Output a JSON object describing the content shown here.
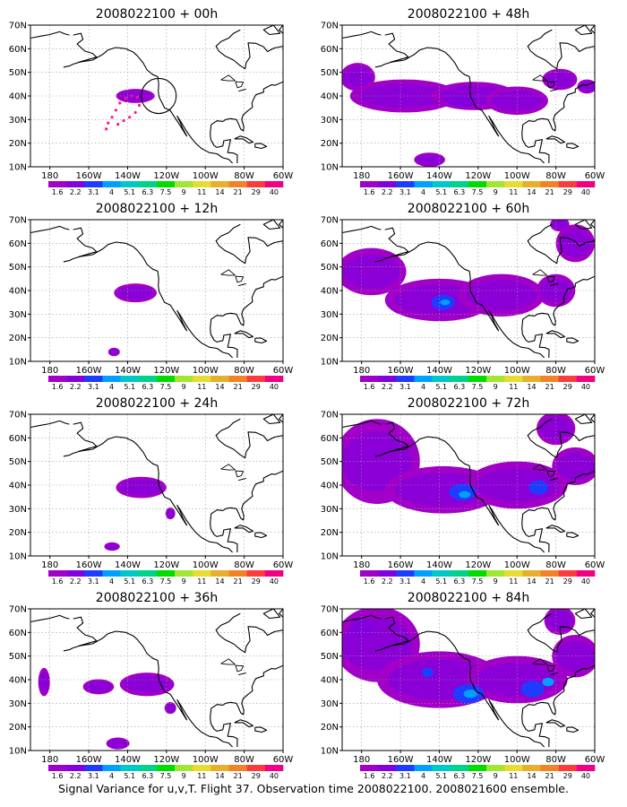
{
  "caption": "Signal Variance for u,v,T. Flight 37. Observation time 2008022100. 2008021600 ensemble.",
  "axes": {
    "x_ticks": [
      "180",
      "160W",
      "140W",
      "120W",
      "100W",
      "80W",
      "60W"
    ],
    "y_ticks": [
      "10N",
      "20N",
      "30N",
      "40N",
      "50N",
      "60N",
      "70N"
    ],
    "x_range_lon": [
      -190,
      -60
    ],
    "y_range_lat": [
      10,
      70
    ],
    "grid": true
  },
  "colorbar": {
    "levels": [
      "1.6",
      "2.2",
      "3.1",
      "4",
      "5.1",
      "6.3",
      "7.5",
      "9",
      "11",
      "14",
      "21",
      "29",
      "40"
    ],
    "colors": [
      "#a000c8",
      "#8200dc",
      "#1e3cff",
      "#00a0ff",
      "#00c8c8",
      "#00d28c",
      "#00dc00",
      "#a0e632",
      "#e6dc32",
      "#e6af2d",
      "#f08228",
      "#fa3c3c",
      "#f00082"
    ]
  },
  "chart_data": [
    {
      "type": "heatmap",
      "title": "2008022100 + 00h",
      "blobs": [
        {
          "lon": -136,
          "lat": 40,
          "rx": 10,
          "ry": 3,
          "level": 0
        }
      ],
      "flight_track": [
        [
          -151,
          26
        ],
        [
          -150,
          28.5
        ],
        [
          -148,
          31
        ],
        [
          -146,
          34
        ],
        [
          -144,
          37
        ],
        [
          -141,
          39
        ],
        [
          -138,
          40
        ],
        [
          -135,
          39.5
        ],
        [
          -134,
          36
        ],
        [
          -136,
          33
        ],
        [
          -139,
          31
        ],
        [
          -142,
          29.5
        ],
        [
          -145,
          28
        ]
      ],
      "circle": {
        "lon": -124,
        "lat": 40,
        "radius_deg": 9
      }
    },
    {
      "type": "heatmap",
      "title": "2008022100 + 12h",
      "blobs": [
        {
          "lon": -136,
          "lat": 39,
          "rx": 11,
          "ry": 4,
          "level": 0
        },
        {
          "lon": -147,
          "lat": 14,
          "rx": 3,
          "ry": 1.8,
          "level": 0
        }
      ]
    },
    {
      "type": "heatmap",
      "title": "2008022100 + 24h",
      "blobs": [
        {
          "lon": -133,
          "lat": 39,
          "rx": 13,
          "ry": 4.5,
          "level": 0
        },
        {
          "lon": -118,
          "lat": 28,
          "rx": 2.5,
          "ry": 2.5,
          "level": 0
        },
        {
          "lon": -148,
          "lat": 14,
          "rx": 4,
          "ry": 1.8,
          "level": 0
        }
      ]
    },
    {
      "type": "heatmap",
      "title": "2008022100 + 36h",
      "blobs": [
        {
          "lon": -183,
          "lat": 39,
          "rx": 3,
          "ry": 6,
          "level": 0
        },
        {
          "lon": -155,
          "lat": 37,
          "rx": 8,
          "ry": 3.2,
          "level": 0
        },
        {
          "lon": -130,
          "lat": 38,
          "rx": 14,
          "ry": 5,
          "level": 0
        },
        {
          "lon": -118,
          "lat": 28,
          "rx": 3,
          "ry": 2.5,
          "level": 0
        },
        {
          "lon": -145,
          "lat": 13,
          "rx": 6,
          "ry": 2.5,
          "level": 0
        }
      ]
    },
    {
      "type": "heatmap",
      "title": "2008022100 + 48h",
      "blobs": [
        {
          "lon": -158,
          "lat": 40,
          "rx": 28,
          "ry": 7,
          "level": 0
        },
        {
          "lon": -122,
          "lat": 40,
          "rx": 22,
          "ry": 6,
          "level": 0
        },
        {
          "lon": -100,
          "lat": 38,
          "rx": 16,
          "ry": 6,
          "level": 0
        },
        {
          "lon": -182,
          "lat": 48,
          "rx": 9,
          "ry": 6,
          "level": 0
        },
        {
          "lon": -78,
          "lat": 47,
          "rx": 9,
          "ry": 4.5,
          "level": 0
        },
        {
          "lon": -64,
          "lat": 44,
          "rx": 5,
          "ry": 3,
          "level": 0
        },
        {
          "lon": -145,
          "lat": 13,
          "rx": 8,
          "ry": 3,
          "level": 0
        },
        {
          "lon": -128,
          "lat": 38,
          "rx": 8,
          "ry": 2.5,
          "level": 1
        }
      ]
    },
    {
      "type": "heatmap",
      "title": "2008022100 + 60h",
      "blobs": [
        {
          "lon": -175,
          "lat": 48,
          "rx": 18,
          "ry": 10,
          "level": 0
        },
        {
          "lon": -140,
          "lat": 36,
          "rx": 28,
          "ry": 9,
          "level": 0
        },
        {
          "lon": -108,
          "lat": 38,
          "rx": 22,
          "ry": 9,
          "level": 0
        },
        {
          "lon": -80,
          "lat": 40,
          "rx": 10,
          "ry": 7,
          "level": 0
        },
        {
          "lon": -70,
          "lat": 60,
          "rx": 10,
          "ry": 8,
          "level": 0
        },
        {
          "lon": -78,
          "lat": 68,
          "rx": 5,
          "ry": 3,
          "level": 0
        },
        {
          "lon": -138,
          "lat": 35,
          "rx": 6,
          "ry": 3.2,
          "level": 2
        },
        {
          "lon": -137,
          "lat": 35,
          "rx": 2.5,
          "ry": 1.2,
          "level": 3
        }
      ]
    },
    {
      "type": "heatmap",
      "title": "2008022100 + 72h",
      "blobs": [
        {
          "lon": -172,
          "lat": 50,
          "rx": 22,
          "ry": 18,
          "level": 0
        },
        {
          "lon": -138,
          "lat": 38,
          "rx": 30,
          "ry": 10,
          "level": 0
        },
        {
          "lon": -100,
          "lat": 40,
          "rx": 26,
          "ry": 10,
          "level": 0
        },
        {
          "lon": -70,
          "lat": 48,
          "rx": 12,
          "ry": 8,
          "level": 0
        },
        {
          "lon": -80,
          "lat": 64,
          "rx": 10,
          "ry": 7,
          "level": 0
        },
        {
          "lon": -128,
          "lat": 37,
          "rx": 7,
          "ry": 3.5,
          "level": 2
        },
        {
          "lon": -127,
          "lat": 36,
          "rx": 3,
          "ry": 1.5,
          "level": 3
        },
        {
          "lon": -89,
          "lat": 39,
          "rx": 5,
          "ry": 3,
          "level": 2
        }
      ]
    },
    {
      "type": "heatmap",
      "title": "2008022100 + 84h",
      "blobs": [
        {
          "lon": -172,
          "lat": 55,
          "rx": 22,
          "ry": 16,
          "level": 0
        },
        {
          "lon": -140,
          "lat": 40,
          "rx": 32,
          "ry": 12,
          "level": 0
        },
        {
          "lon": -100,
          "lat": 40,
          "rx": 26,
          "ry": 10,
          "level": 0
        },
        {
          "lon": -70,
          "lat": 50,
          "rx": 12,
          "ry": 9,
          "level": 0
        },
        {
          "lon": -78,
          "lat": 65,
          "rx": 8,
          "ry": 6,
          "level": 0
        },
        {
          "lon": -180,
          "lat": 62,
          "rx": 6,
          "ry": 4,
          "level": 1
        },
        {
          "lon": -146,
          "lat": 43,
          "rx": 3,
          "ry": 2,
          "level": 2
        },
        {
          "lon": -125,
          "lat": 34,
          "rx": 8,
          "ry": 4,
          "level": 2
        },
        {
          "lon": -124,
          "lat": 34,
          "rx": 3.5,
          "ry": 1.8,
          "level": 3
        },
        {
          "lon": -92,
          "lat": 36,
          "rx": 6,
          "ry": 3.5,
          "level": 2
        },
        {
          "lon": -84,
          "lat": 39,
          "rx": 3,
          "ry": 1.8,
          "level": 3
        }
      ]
    }
  ]
}
